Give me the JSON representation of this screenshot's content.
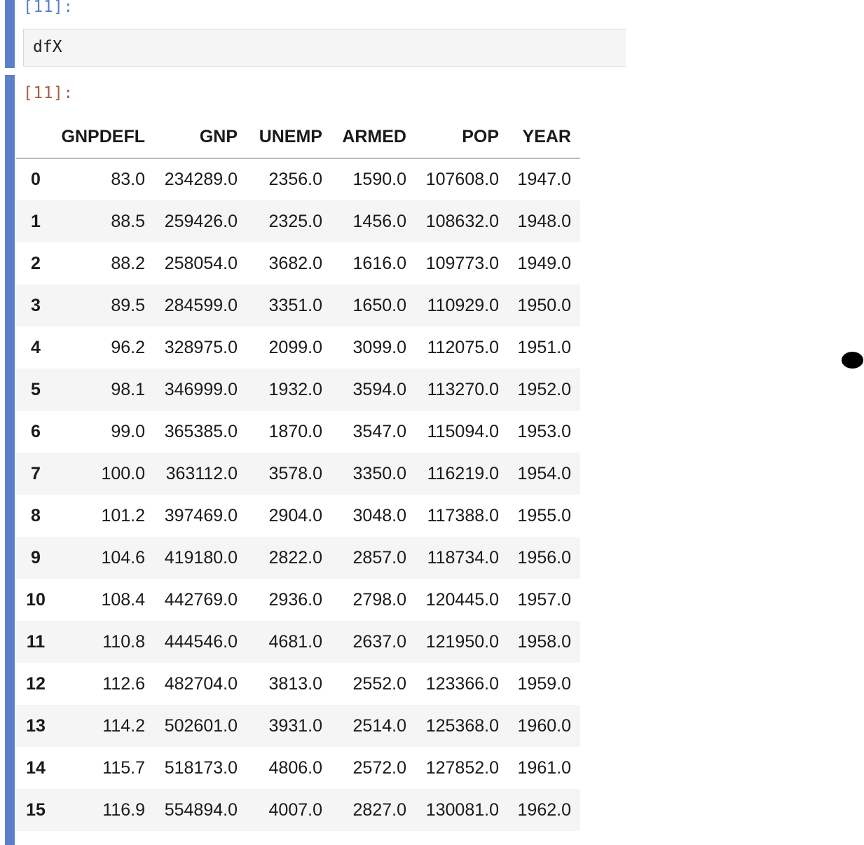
{
  "input_cell": {
    "prompt": "[11]:",
    "code": "dfX"
  },
  "output_cell": {
    "prompt": "[11]:"
  },
  "table": {
    "columns": [
      "GNPDEFL",
      "GNP",
      "UNEMP",
      "ARMED",
      "POP",
      "YEAR"
    ],
    "rows": [
      {
        "index": "0",
        "cells": [
          "83.0",
          "234289.0",
          "2356.0",
          "1590.0",
          "107608.0",
          "1947.0"
        ]
      },
      {
        "index": "1",
        "cells": [
          "88.5",
          "259426.0",
          "2325.0",
          "1456.0",
          "108632.0",
          "1948.0"
        ]
      },
      {
        "index": "2",
        "cells": [
          "88.2",
          "258054.0",
          "3682.0",
          "1616.0",
          "109773.0",
          "1949.0"
        ]
      },
      {
        "index": "3",
        "cells": [
          "89.5",
          "284599.0",
          "3351.0",
          "1650.0",
          "110929.0",
          "1950.0"
        ]
      },
      {
        "index": "4",
        "cells": [
          "96.2",
          "328975.0",
          "2099.0",
          "3099.0",
          "112075.0",
          "1951.0"
        ]
      },
      {
        "index": "5",
        "cells": [
          "98.1",
          "346999.0",
          "1932.0",
          "3594.0",
          "113270.0",
          "1952.0"
        ]
      },
      {
        "index": "6",
        "cells": [
          "99.0",
          "365385.0",
          "1870.0",
          "3547.0",
          "115094.0",
          "1953.0"
        ]
      },
      {
        "index": "7",
        "cells": [
          "100.0",
          "363112.0",
          "3578.0",
          "3350.0",
          "116219.0",
          "1954.0"
        ]
      },
      {
        "index": "8",
        "cells": [
          "101.2",
          "397469.0",
          "2904.0",
          "3048.0",
          "117388.0",
          "1955.0"
        ]
      },
      {
        "index": "9",
        "cells": [
          "104.6",
          "419180.0",
          "2822.0",
          "2857.0",
          "118734.0",
          "1956.0"
        ]
      },
      {
        "index": "10",
        "cells": [
          "108.4",
          "442769.0",
          "2936.0",
          "2798.0",
          "120445.0",
          "1957.0"
        ]
      },
      {
        "index": "11",
        "cells": [
          "110.8",
          "444546.0",
          "4681.0",
          "2637.0",
          "121950.0",
          "1958.0"
        ]
      },
      {
        "index": "12",
        "cells": [
          "112.6",
          "482704.0",
          "3813.0",
          "2552.0",
          "123366.0",
          "1959.0"
        ]
      },
      {
        "index": "13",
        "cells": [
          "114.2",
          "502601.0",
          "3931.0",
          "2514.0",
          "125368.0",
          "1960.0"
        ]
      },
      {
        "index": "14",
        "cells": [
          "115.7",
          "518173.0",
          "4806.0",
          "2572.0",
          "127852.0",
          "1961.0"
        ]
      },
      {
        "index": "15",
        "cells": [
          "116.9",
          "554894.0",
          "4007.0",
          "2827.0",
          "130081.0",
          "1962.0"
        ]
      }
    ]
  },
  "colors": {
    "cell_bar": "#5b7fcb",
    "input_prompt": "#5b7fcb",
    "output_prompt": "#a75f45"
  }
}
